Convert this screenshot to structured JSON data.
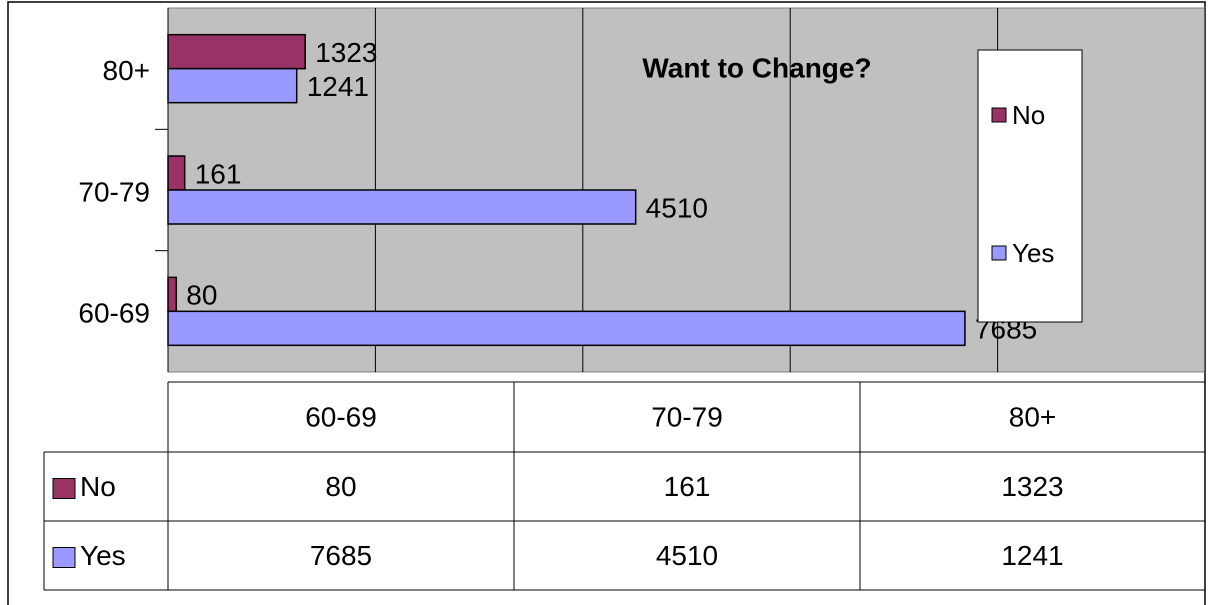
{
  "chart_data": {
    "type": "hbar",
    "title": "Want to Change?",
    "categories": [
      "60-69",
      "70-79",
      "80+"
    ],
    "series": [
      {
        "name": "No",
        "color": "#993366",
        "values": [
          80,
          161,
          1323
        ]
      },
      {
        "name": "Yes",
        "color": "#9999ff",
        "values": [
          7685,
          4510,
          1241
        ]
      }
    ],
    "xlim": [
      0,
      10000
    ],
    "xticks": [
      0,
      2000,
      4000,
      6000,
      8000,
      10000
    ],
    "grid": true,
    "legend": "right",
    "data_table": true
  }
}
